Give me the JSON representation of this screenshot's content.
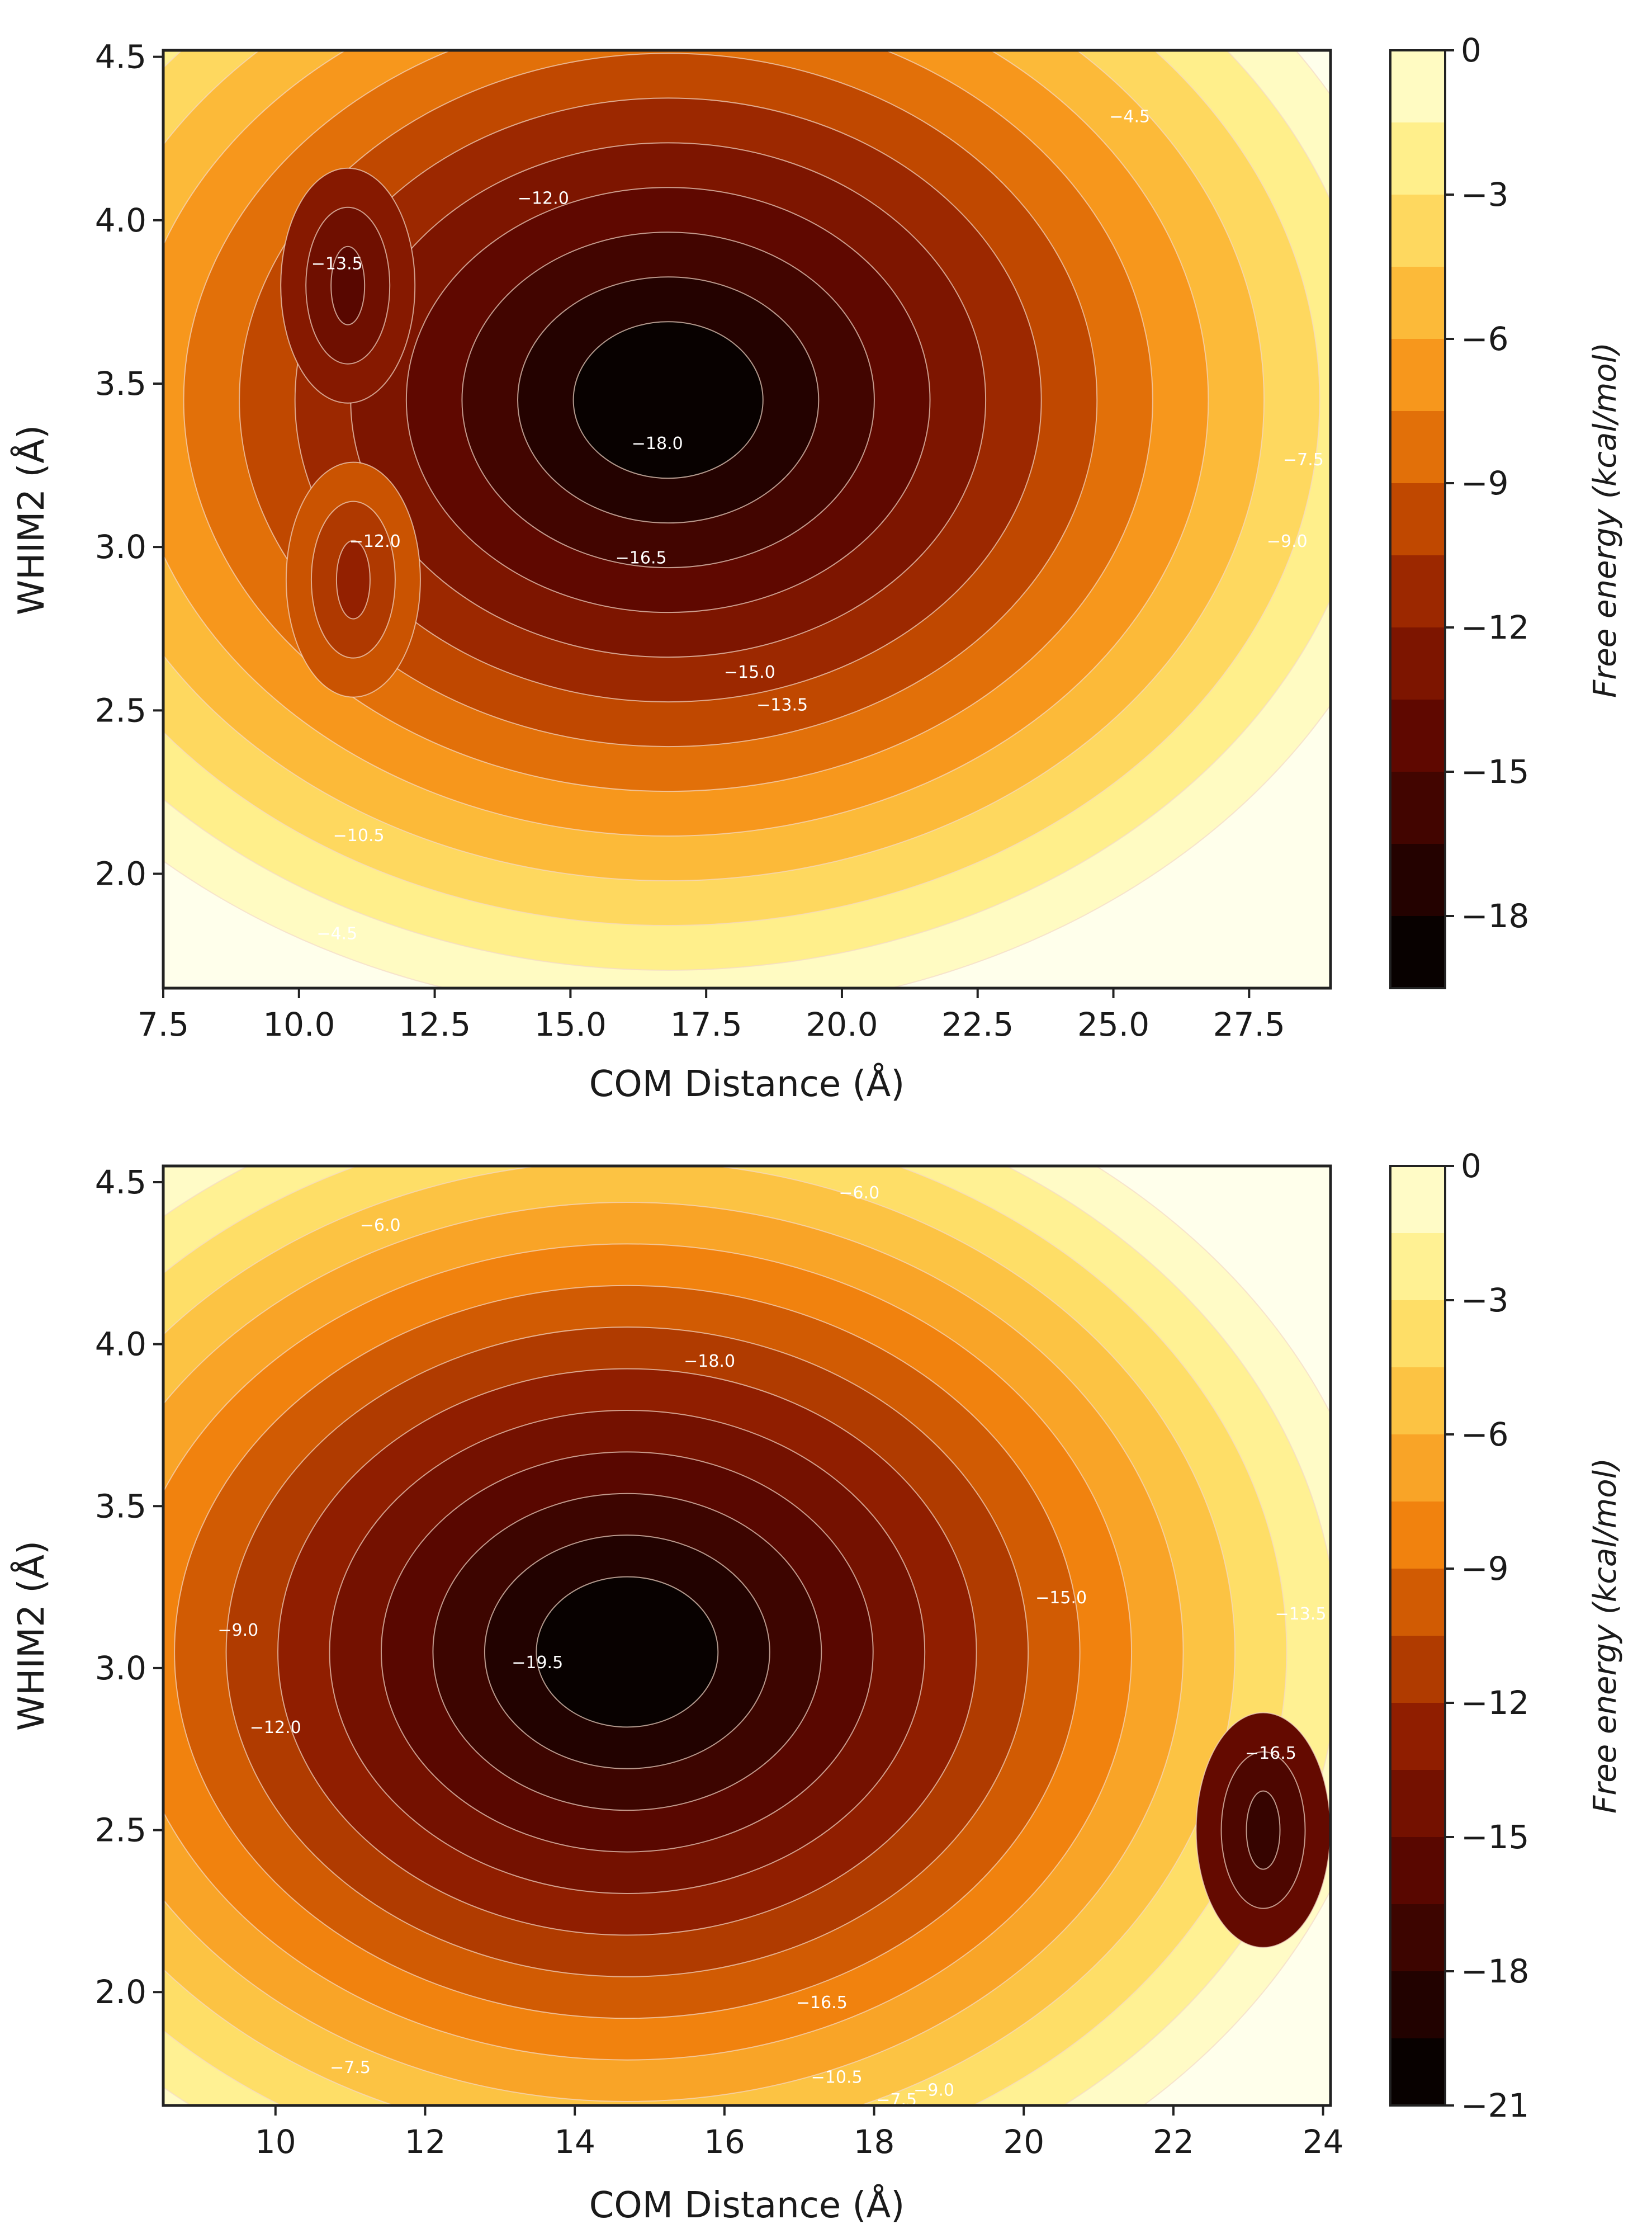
{
  "chart_data": [
    {
      "type": "contour",
      "xlabel": "COM Distance (Å)",
      "ylabel": "WHIM2 (Å)",
      "xlim": [
        7.5,
        29.0
      ],
      "ylim": [
        1.65,
        4.52
      ],
      "xticks": [
        "7.5",
        "10.0",
        "12.5",
        "15.0",
        "17.5",
        "20.0",
        "22.5",
        "25.0",
        "27.5"
      ],
      "yticks": [
        "2.0",
        "2.5",
        "3.0",
        "3.5",
        "4.0",
        "4.5"
      ],
      "colorbar": {
        "label": "Free energy (kcal/mol)",
        "min": -19.5,
        "max": 0,
        "levels": [
          -19.5,
          -18,
          -16.5,
          -15,
          -13.5,
          -12,
          -10.5,
          -9,
          -7.5,
          -6,
          -4.5,
          -3,
          -1.5,
          0
        ],
        "ticks": [
          "0",
          "−3",
          "−6",
          "−9",
          "−12",
          "−15",
          "−18"
        ]
      },
      "minima": [
        {
          "x": 16.8,
          "y": 3.45,
          "value": -19.5
        },
        {
          "x": 10.9,
          "y": 3.8,
          "value": -15.0
        },
        {
          "x": 11.0,
          "y": 2.9,
          "value": -12.0
        }
      ],
      "contour_labels": [
        {
          "text": "−13.5",
          "x": 10.7,
          "y": 3.85
        },
        {
          "text": "−12.0",
          "x": 14.5,
          "y": 4.05
        },
        {
          "text": "−12.0",
          "x": 11.4,
          "y": 3.0
        },
        {
          "text": "−18.0",
          "x": 16.6,
          "y": 3.3
        },
        {
          "text": "−16.5",
          "x": 16.3,
          "y": 2.95
        },
        {
          "text": "−15.0",
          "x": 18.3,
          "y": 2.6
        },
        {
          "text": "−13.5",
          "x": 18.9,
          "y": 2.5
        },
        {
          "text": "−10.5",
          "x": 11.1,
          "y": 2.1
        },
        {
          "text": "−4.5",
          "x": 10.7,
          "y": 1.8
        },
        {
          "text": "−9.0",
          "x": 28.2,
          "y": 3.0
        },
        {
          "text": "−7.5",
          "x": 28.5,
          "y": 3.25
        },
        {
          "text": "−4.5",
          "x": 25.3,
          "y": 4.3
        }
      ]
    },
    {
      "type": "contour",
      "xlabel": "COM Distance (Å)",
      "ylabel": "WHIM2 (Å)",
      "xlim": [
        8.5,
        24.1
      ],
      "ylim": [
        1.65,
        4.55
      ],
      "xticks": [
        "10",
        "12",
        "14",
        "16",
        "18",
        "20",
        "22",
        "24"
      ],
      "yticks": [
        "2.0",
        "2.5",
        "3.0",
        "3.5",
        "4.0",
        "4.5"
      ],
      "colorbar": {
        "label": "Free energy (kcal/mol)",
        "min": -21,
        "max": 0,
        "levels": [
          -21,
          -19.5,
          -18,
          -16.5,
          -15,
          -13.5,
          -12,
          -10.5,
          -9,
          -7.5,
          -6,
          -4.5,
          -3,
          -1.5,
          0
        ],
        "ticks": [
          "0",
          "−3",
          "−6",
          "−9",
          "−12",
          "−15",
          "−18",
          "−21"
        ]
      },
      "minima": [
        {
          "x": 14.7,
          "y": 3.05,
          "value": -21.0
        },
        {
          "x": 23.2,
          "y": 2.5,
          "value": -18.0
        }
      ],
      "contour_labels": [
        {
          "text": "−6.0",
          "x": 11.4,
          "y": 4.35
        },
        {
          "text": "−6.0",
          "x": 17.8,
          "y": 4.45
        },
        {
          "text": "−18.0",
          "x": 15.8,
          "y": 3.93
        },
        {
          "text": "−19.5",
          "x": 13.5,
          "y": 3.0
        },
        {
          "text": "−15.0",
          "x": 20.5,
          "y": 3.2
        },
        {
          "text": "−13.5",
          "x": 23.7,
          "y": 3.15
        },
        {
          "text": "−16.5",
          "x": 23.3,
          "y": 2.72
        },
        {
          "text": "−12.0",
          "x": 10.0,
          "y": 2.8
        },
        {
          "text": "−9.0",
          "x": 9.5,
          "y": 3.1
        },
        {
          "text": "−16.5",
          "x": 17.3,
          "y": 1.95
        },
        {
          "text": "−10.5",
          "x": 17.5,
          "y": 1.72
        },
        {
          "text": "−9.0",
          "x": 18.8,
          "y": 1.68
        },
        {
          "text": "−7.5",
          "x": 18.3,
          "y": 1.65
        },
        {
          "text": "−7.5",
          "x": 11.0,
          "y": 1.75
        }
      ]
    }
  ]
}
